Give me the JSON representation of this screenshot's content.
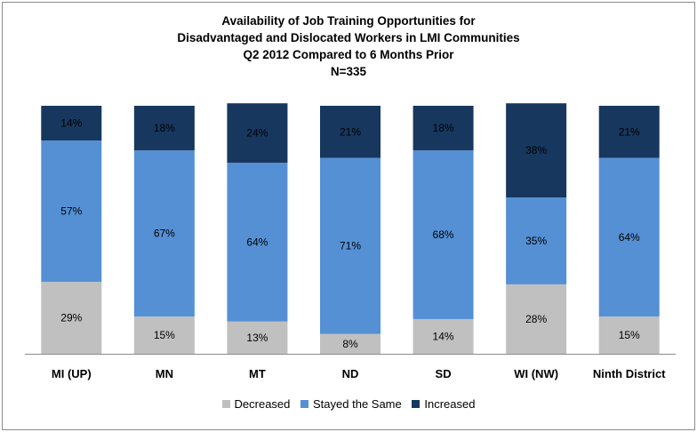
{
  "chart_data": {
    "type": "bar",
    "stacked": true,
    "title_lines": [
      "Availability of Job Training Opportunities for",
      "Disadvantaged and Dislocated Workers in LMI Communities",
      "Q2 2012 Compared to 6 Months Prior",
      "N=335"
    ],
    "categories": [
      "MI (UP)",
      "MN",
      "MT",
      "ND",
      "SD",
      "WI (NW)",
      "Ninth District"
    ],
    "series": [
      {
        "name": "Decreased",
        "color": "#c0c0c0",
        "values": [
          29,
          15,
          13,
          8,
          14,
          28,
          15
        ]
      },
      {
        "name": "Stayed the Same",
        "color": "#5590d5",
        "values": [
          57,
          67,
          64,
          71,
          68,
          35,
          64
        ]
      },
      {
        "name": "Increased",
        "color": "#17375e",
        "values": [
          14,
          18,
          24,
          21,
          18,
          38,
          21
        ]
      }
    ],
    "ylim": [
      0,
      100
    ],
    "value_suffix": "%",
    "legend_position": "bottom",
    "grid": false
  }
}
